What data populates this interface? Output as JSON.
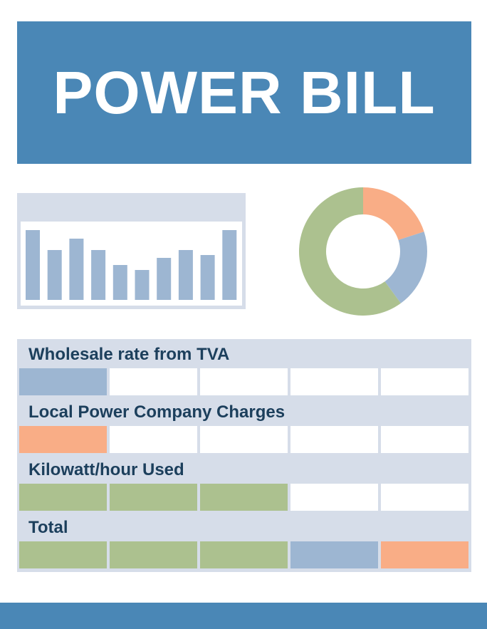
{
  "title": "POWER BILL",
  "colors": {
    "header": "#4a87b6",
    "panel": "#d6dde9",
    "blue": "#9db6d2",
    "orange": "#f9ad86",
    "green": "#acc18f",
    "empty": "#ffffff",
    "label_text": "#1c3f5c"
  },
  "bar_chart": {
    "values": [
      98,
      70,
      86,
      70,
      49,
      42,
      59,
      70,
      63,
      98
    ],
    "max": 100,
    "bar_color": "#9db6d2"
  },
  "donut_chart": {
    "slices": [
      {
        "value": 20,
        "color": "#f9ad86"
      },
      {
        "value": 20,
        "color": "#9db6d2"
      },
      {
        "value": 60,
        "color": "#acc18f"
      }
    ]
  },
  "sections": [
    {
      "label": "Wholesale rate from TVA",
      "cells": [
        "blue",
        "empty",
        "empty",
        "empty",
        "empty"
      ]
    },
    {
      "label": "Local Power Company Charges",
      "cells": [
        "orange",
        "empty",
        "empty",
        "empty",
        "empty"
      ]
    },
    {
      "label": "Kilowatt/hour Used",
      "cells": [
        "green",
        "green",
        "green",
        "empty",
        "empty"
      ]
    },
    {
      "label": "Total",
      "cells": [
        "green",
        "green",
        "green",
        "blue",
        "orange"
      ]
    }
  ]
}
